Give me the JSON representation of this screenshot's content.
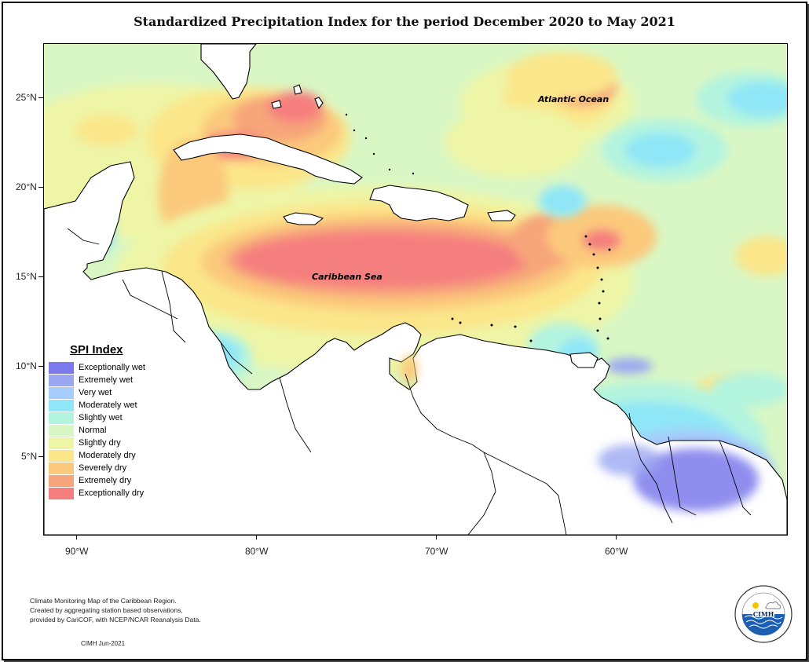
{
  "title": "Standardized Precipitation Index for the period December 2020 to May 2021",
  "map": {
    "lat_labels": [
      "25°N",
      "20°N",
      "15°N",
      "10°N",
      "5°N"
    ],
    "lon_labels": [
      "90°W",
      "80°W",
      "70°W",
      "60°W"
    ],
    "places": {
      "atlantic": "Atlantic Ocean",
      "caribbean": "Caribbean Sea"
    }
  },
  "legend": {
    "title": "SPI Index",
    "items": [
      {
        "label": "Exceptionally wet",
        "color": "#7b79ec"
      },
      {
        "label": "Extremely wet",
        "color": "#9ba7f1"
      },
      {
        "label": "Very wet",
        "color": "#a6cdfb"
      },
      {
        "label": "Moderately wet",
        "color": "#8fe6f7"
      },
      {
        "label": "Slightly wet",
        "color": "#b3f4df"
      },
      {
        "label": "Normal",
        "color": "#d9f7c4"
      },
      {
        "label": "Slightly dry",
        "color": "#eef5a6"
      },
      {
        "label": "Moderately dry",
        "color": "#fbe68a"
      },
      {
        "label": "Severely dry",
        "color": "#fbc97b"
      },
      {
        "label": "Extremely dry",
        "color": "#f7a57a"
      },
      {
        "label": "Exceptionally dry",
        "color": "#f57f7e"
      }
    ]
  },
  "footnote": {
    "line1": "Climate Monitoring Map of the Caribbean Region.",
    "line2": "Created by aggregating station based observations,",
    "line3": "provided by CariCOF, with NCEP/NCAR Reanalysis Data."
  },
  "credit": "CIMH Jun-2021",
  "logo": {
    "text": "CIMH",
    "ring_text": "Caribbean Institute for Meteorology and Hydrology"
  }
}
